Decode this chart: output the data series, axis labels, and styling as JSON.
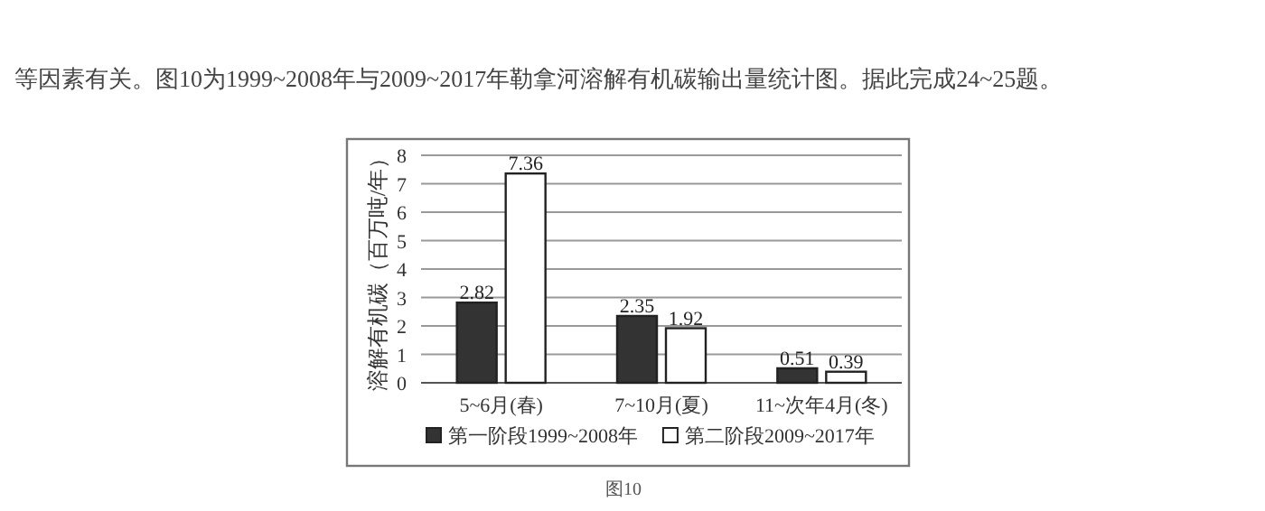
{
  "chart_data": {
    "type": "bar",
    "ylabel": "溶解有机碳（百万吨/年）",
    "categories": [
      "5~6月(春)",
      "7~10月(夏)",
      "11~次年4月(冬)"
    ],
    "series": [
      {
        "name": "第一阶段1999~2008年",
        "color": "#333333",
        "values": [
          2.82,
          2.35,
          0.51
        ]
      },
      {
        "name": "第二阶段2009~2017年",
        "color": "#ffffff",
        "values": [
          7.36,
          1.92,
          0.39
        ]
      }
    ],
    "ylim": [
      0,
      8
    ],
    "yticks": [
      0,
      1,
      2,
      3,
      4,
      5,
      6,
      7,
      8
    ],
    "grid": "y",
    "legend": "bottom",
    "data_labels": true,
    "annotations": [
      "等因素有关。图10为1999~2008年与2009~2017年勒拿河溶解有机碳输出量统计图。据此完成24~25题。",
      "图10"
    ]
  }
}
